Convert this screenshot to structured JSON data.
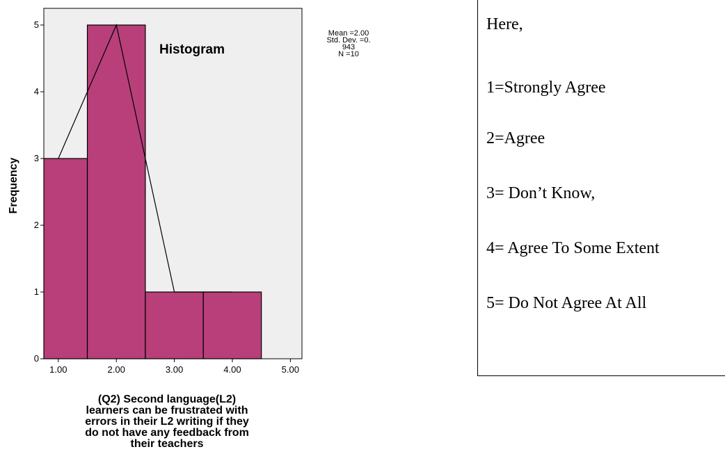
{
  "chart_data": {
    "type": "bar",
    "title": "Histogram",
    "ylabel": "Frequency",
    "xlabel_lines": [
      "(Q2) Second language(L2)",
      "learners can be frustrated with",
      "errors in their L2 writing if they",
      "do not have any feedback from",
      "their teachers"
    ],
    "bins": [
      {
        "from": 0.5,
        "to": 1.5,
        "count": 3
      },
      {
        "from": 1.5,
        "to": 2.5,
        "count": 5
      },
      {
        "from": 2.5,
        "to": 3.5,
        "count": 1
      },
      {
        "from": 3.5,
        "to": 4.5,
        "count": 1
      }
    ],
    "x_ticks": [
      1.0,
      2.0,
      3.0,
      4.0,
      5.0
    ],
    "x_tick_labels": [
      "1.00",
      "2.00",
      "3.00",
      "4.00",
      "5.00"
    ],
    "y_ticks": [
      0,
      1,
      2,
      3,
      4,
      5
    ],
    "y_tick_labels": [
      "0",
      "1",
      "2",
      "3",
      "4",
      "5"
    ],
    "xlim": [
      0.75,
      5.2
    ],
    "ylim": [
      0,
      5.25
    ],
    "frequency_polygon": [
      [
        1.0,
        3
      ],
      [
        2.0,
        5
      ],
      [
        3.0,
        1
      ],
      [
        4.0,
        1
      ]
    ],
    "stats_lines": [
      "Mean =2.00",
      "Std. Dev. =0.",
      "943",
      "N =10"
    ],
    "colors": {
      "bar": "#b83f79",
      "plot_bg": "#efefef",
      "line": "#000000"
    },
    "grid": false
  },
  "legend": {
    "lines": [
      "Here,",
      "1=Strongly Agree",
      "2=Agree",
      "3= Don’t Know,",
      "4= Agree To Some Extent",
      "5= Do Not Agree At All"
    ]
  }
}
